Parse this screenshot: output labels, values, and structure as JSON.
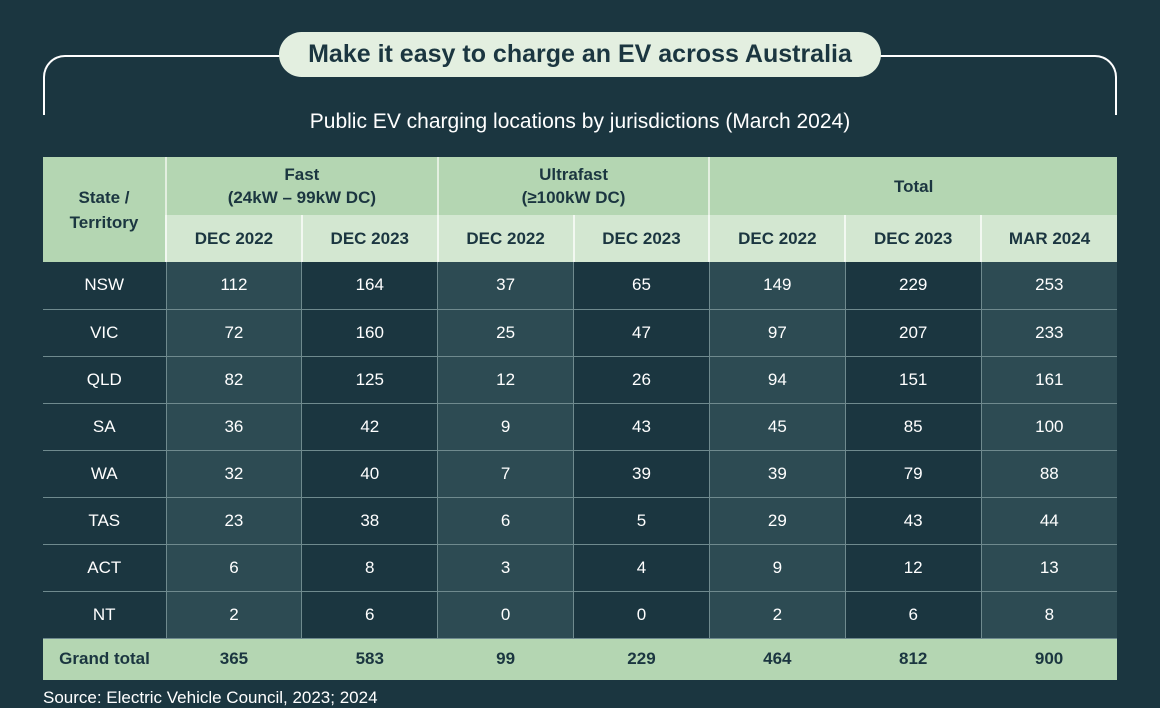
{
  "header": {
    "title": "Make it easy to charge an EV across Australia",
    "subtitle": "Public EV charging locations by jurisdictions (March 2024)"
  },
  "table": {
    "row_header": [
      "State /",
      "Territory"
    ],
    "groups": [
      {
        "label": "Fast",
        "sublabel": "(24kW – 99kW DC)",
        "columns": [
          "DEC 2022",
          "DEC 2023"
        ]
      },
      {
        "label": "Ultrafast",
        "sublabel": "(≥100kW DC)",
        "columns": [
          "DEC 2022",
          "DEC 2023"
        ]
      },
      {
        "label": "Total",
        "sublabel": "",
        "columns": [
          "DEC 2022",
          "DEC 2023",
          "MAR 2024"
        ]
      }
    ],
    "rows": [
      {
        "state": "NSW",
        "values": [
          "112",
          "164",
          "37",
          "65",
          "149",
          "229",
          "253"
        ]
      },
      {
        "state": "VIC",
        "values": [
          "72",
          "160",
          "25",
          "47",
          "97",
          "207",
          "233"
        ]
      },
      {
        "state": "QLD",
        "values": [
          "82",
          "125",
          "12",
          "26",
          "94",
          "151",
          "161"
        ]
      },
      {
        "state": "SA",
        "values": [
          "36",
          "42",
          "9",
          "43",
          "45",
          "85",
          "100"
        ]
      },
      {
        "state": "WA",
        "values": [
          "32",
          "40",
          "7",
          "39",
          "39",
          "79",
          "88"
        ]
      },
      {
        "state": "TAS",
        "values": [
          "23",
          "38",
          "6",
          "5",
          "29",
          "43",
          "44"
        ]
      },
      {
        "state": "ACT",
        "values": [
          "6",
          "8",
          "3",
          "4",
          "9",
          "12",
          "13"
        ]
      },
      {
        "state": "NT",
        "values": [
          "2",
          "6",
          "0",
          "0",
          "2",
          "6",
          "8"
        ]
      }
    ],
    "total": {
      "state": "Grand total",
      "values": [
        "365",
        "583",
        "99",
        "229",
        "464",
        "812",
        "900"
      ]
    }
  },
  "footer": {
    "source": "Source: Electric Vehicle Council, 2023; 2024"
  },
  "colors": {
    "background": "#1b3640",
    "header_green": "#b4d6b2",
    "subheader_green": "#d3e7d1",
    "pill": "#e3efe0",
    "cell_light": "#2d4b53"
  },
  "chart_data": {
    "type": "table",
    "title": "Public EV charging locations by jurisdictions (March 2024)",
    "columns": [
      "State / Territory",
      "Fast DEC 2022",
      "Fast DEC 2023",
      "Ultrafast DEC 2022",
      "Ultrafast DEC 2023",
      "Total DEC 2022",
      "Total DEC 2023",
      "Total MAR 2024"
    ],
    "rows": [
      [
        "NSW",
        112,
        164,
        37,
        65,
        149,
        229,
        253
      ],
      [
        "VIC",
        72,
        160,
        25,
        47,
        97,
        207,
        233
      ],
      [
        "QLD",
        82,
        125,
        12,
        26,
        94,
        151,
        161
      ],
      [
        "SA",
        36,
        42,
        9,
        43,
        45,
        85,
        100
      ],
      [
        "WA",
        32,
        40,
        7,
        39,
        39,
        79,
        88
      ],
      [
        "TAS",
        23,
        38,
        6,
        5,
        29,
        43,
        44
      ],
      [
        "ACT",
        6,
        8,
        3,
        4,
        9,
        12,
        13
      ],
      [
        "NT",
        2,
        6,
        0,
        0,
        2,
        6,
        8
      ],
      [
        "Grand total",
        365,
        583,
        99,
        229,
        464,
        812,
        900
      ]
    ]
  }
}
